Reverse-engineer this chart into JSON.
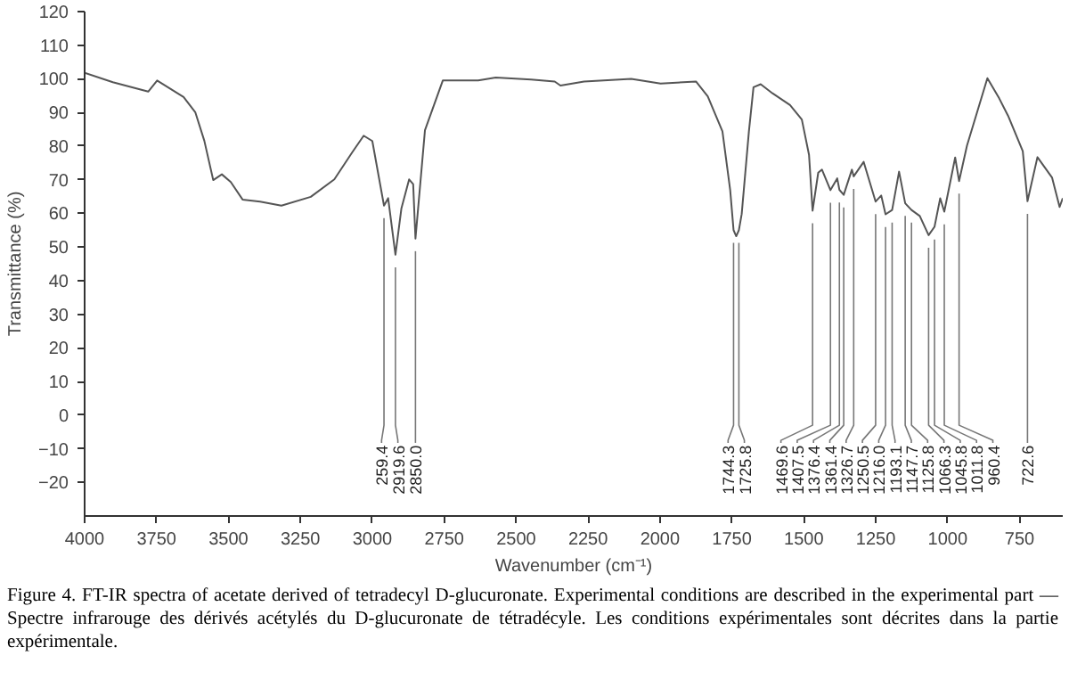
{
  "chart_data": {
    "type": "line",
    "xlabel": "Wavenumber (cm⁻¹)",
    "ylabel": "Transmittance (%)",
    "xlim": [
      4000,
      600
    ],
    "ylim": [
      -30,
      120
    ],
    "xticks": [
      4000,
      3750,
      3500,
      3250,
      3000,
      2750,
      2500,
      2250,
      2000,
      1750,
      1500,
      1250,
      1000,
      750
    ],
    "yticks": [
      -20,
      -10,
      0,
      10,
      20,
      30,
      40,
      50,
      60,
      70,
      80,
      90,
      100,
      110,
      120
    ],
    "grid": false,
    "marker": "none",
    "line_style": "solid",
    "series": [
      {
        "color": "#555555",
        "x": [
          4000,
          3902,
          3779,
          3748,
          3656,
          3615,
          3584,
          3553,
          3523,
          3492,
          3451,
          3390,
          3316,
          3214,
          3132,
          3071,
          3030,
          3000,
          2959.4,
          2945,
          2919.6,
          2899,
          2872,
          2858,
          2850.0,
          2817,
          2755,
          2632,
          2571,
          2448,
          2366,
          2346,
          2264,
          2100,
          1998,
          1875,
          1834,
          1783,
          1756,
          1744.3,
          1735,
          1725.8,
          1716,
          1691,
          1675,
          1650,
          1609,
          1548,
          1507,
          1482,
          1469.6,
          1450,
          1437,
          1407.5,
          1384,
          1376.4,
          1361.4,
          1333,
          1326.7,
          1292,
          1250.5,
          1231,
          1216.0,
          1193.1,
          1169,
          1147.7,
          1125.8,
          1097,
          1066.3,
          1045.8,
          1026,
          1011.8,
          974,
          960.4,
          933,
          862,
          821,
          790,
          739,
          722.6,
          688,
          637,
          611,
          600
        ],
        "values": [
          101.8,
          99,
          96.2,
          99.5,
          94.6,
          90,
          81.6,
          69.9,
          71.6,
          69.3,
          64.1,
          63.5,
          62.3,
          64.9,
          70.1,
          78,
          83.1,
          81.5,
          62.3,
          64.5,
          47.7,
          61.4,
          70.1,
          68.7,
          52.5,
          84.7,
          99.5,
          99.5,
          100.4,
          99.8,
          99.2,
          98,
          99.2,
          100,
          98.6,
          99.2,
          94.8,
          84.4,
          66.9,
          55,
          53.2,
          55,
          59.8,
          84.3,
          97.5,
          98.4,
          95.7,
          92.2,
          87.9,
          77.4,
          60.8,
          72.1,
          73,
          66.9,
          70.4,
          67,
          65.5,
          73,
          71,
          75.3,
          63.5,
          65.3,
          59.7,
          61,
          72.4,
          63,
          61,
          59.2,
          53.5,
          56,
          64.5,
          60.5,
          76.6,
          69.6,
          80.1,
          100.2,
          94.2,
          89,
          78.5,
          63.6,
          76.7,
          70.6,
          61.9,
          64.5
        ]
      }
    ],
    "annotations": [
      {
        "text": "259.4",
        "x": 2959.4,
        "y": 62.3
      },
      {
        "text": "2919.6",
        "x": 2919.6,
        "y": 47.7
      },
      {
        "text": "2850.0",
        "x": 2850.0,
        "y": 52.5
      },
      {
        "text": "1744.3",
        "x": 1744.3,
        "y": 55
      },
      {
        "text": "1725.8",
        "x": 1725.8,
        "y": 55
      },
      {
        "text": "1469.6",
        "x": 1469.6,
        "y": 60.8
      },
      {
        "text": "1407.5",
        "x": 1407.5,
        "y": 66.9
      },
      {
        "text": "1376.4",
        "x": 1376.4,
        "y": 67
      },
      {
        "text": "1361.4",
        "x": 1361.4,
        "y": 65.5
      },
      {
        "text": "1326.7",
        "x": 1326.7,
        "y": 71
      },
      {
        "text": "1250.5",
        "x": 1250.5,
        "y": 63.5
      },
      {
        "text": "1216.0",
        "x": 1216.0,
        "y": 59.7
      },
      {
        "text": "1193.1",
        "x": 1193.1,
        "y": 61
      },
      {
        "text": "1147.7",
        "x": 1147.7,
        "y": 63
      },
      {
        "text": "1125.8",
        "x": 1125.8,
        "y": 61
      },
      {
        "text": "1066.3",
        "x": 1066.3,
        "y": 53.5
      },
      {
        "text": "1045.8",
        "x": 1045.8,
        "y": 56
      },
      {
        "text": "1011.8",
        "x": 1011.8,
        "y": 60.5
      },
      {
        "text": "960.4",
        "x": 960.4,
        "y": 69.6
      },
      {
        "text": "722.6",
        "x": 722.6,
        "y": 63.6
      },
      "Figure 4. FT-IR spectra  of acetate derived of tetradecyl D-glucuronate. Experimental conditions are described in the experimental part — Spectre infrarouge des dérivés acétylés du D-glucuronate de tétradécyle. Les conditions expérimentales sont décrites dans la partie expérimentale."
    ]
  }
}
